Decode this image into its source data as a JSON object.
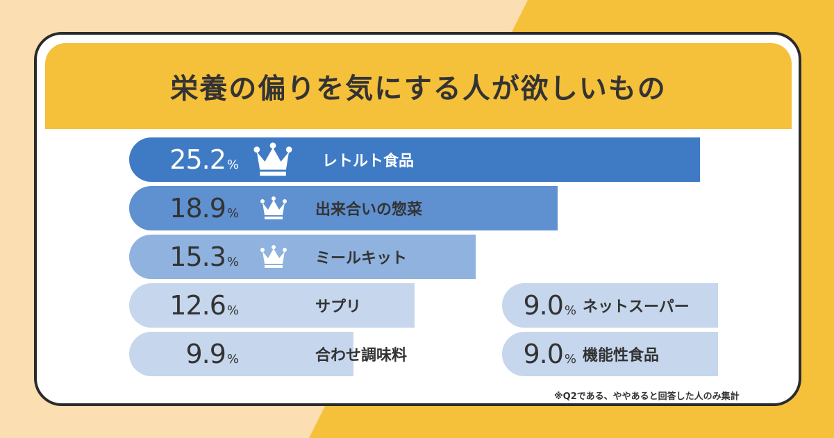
{
  "title": "栄養の偏りを気にする人が欲しいもの",
  "note": "※Q2である、ややあると回答した人のみ集計",
  "colors": {
    "bg_left": "#fbdfb2",
    "bg_right": "#f5c03a",
    "bar1": "#3f7bc5",
    "bar2": "#5f90d0",
    "bar3": "#8fb2de",
    "bar_light": "#c5d6ed"
  },
  "chart_data": {
    "type": "bar",
    "unit": "%",
    "items": [
      {
        "label": "レトルト食品",
        "value": 25.2,
        "display": "25.2",
        "rank": 1
      },
      {
        "label": "出来合いの惣菜",
        "value": 18.9,
        "display": "18.9",
        "rank": 2
      },
      {
        "label": "ミールキット",
        "value": 15.3,
        "display": "15.3",
        "rank": 3
      },
      {
        "label": "サプリ",
        "value": 12.6,
        "display": "12.6",
        "rank": 4
      },
      {
        "label": "合わせ調味料",
        "value": 9.9,
        "display": "9.9",
        "rank": 5
      },
      {
        "label": "ネットスーパー",
        "value": 9.0,
        "display": "9.0",
        "rank": 6
      },
      {
        "label": "機能性食品",
        "value": 9.0,
        "display": "9.0",
        "rank": 6
      }
    ]
  }
}
